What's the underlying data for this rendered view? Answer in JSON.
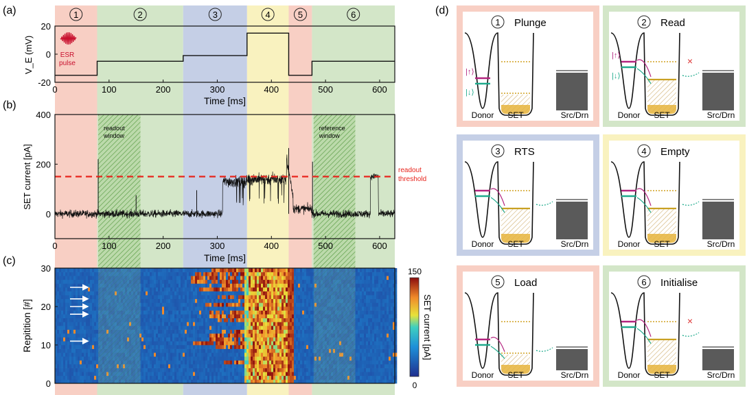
{
  "panel_labels": [
    "(a)",
    "(b)",
    "(c)",
    "(d)"
  ],
  "phases": [
    {
      "num": "1",
      "name": "Plunge",
      "start": 0,
      "end": 78,
      "color": "#f8cfc4"
    },
    {
      "num": "2",
      "name": "Read",
      "start": 78,
      "end": 237,
      "color": "#d3e6c8"
    },
    {
      "num": "3",
      "name": "RTS",
      "start": 237,
      "end": 355,
      "color": "#c5cfe6"
    },
    {
      "num": "4",
      "name": "Empty",
      "start": 355,
      "end": 432,
      "color": "#f9f2bf"
    },
    {
      "num": "5",
      "name": "Load",
      "start": 432,
      "end": 475,
      "color": "#f8cfc4"
    },
    {
      "num": "6",
      "name": "Initialise",
      "start": 475,
      "end": 628,
      "color": "#d3e6c8"
    }
  ],
  "chart_data": [
    {
      "type": "line",
      "panel": "(a)",
      "ylabel": "V_E (mV)",
      "xlabel": "Time [ms]",
      "xlim": [
        0,
        628
      ],
      "ylim": [
        -20,
        20
      ],
      "xticks": [
        0,
        100,
        200,
        300,
        400,
        500,
        600
      ],
      "yticks": [
        -20,
        0,
        20
      ],
      "x": [
        0,
        78,
        78,
        237,
        237,
        355,
        355,
        432,
        432,
        475,
        475,
        628
      ],
      "y": [
        -15,
        -15,
        -5,
        -5,
        -1,
        -1,
        15,
        15,
        -15,
        -15,
        -5,
        -5
      ],
      "annotation": {
        "text1": "ESR",
        "text2": "pulse",
        "color": "#c8102e"
      }
    },
    {
      "type": "line",
      "panel": "(b)",
      "ylabel": "SET current [pA]",
      "xlabel": "Time [ms]",
      "xlim": [
        0,
        628
      ],
      "ylim": [
        -100,
        400
      ],
      "xticks": [
        0,
        100,
        200,
        300,
        400,
        500,
        600
      ],
      "yticks": [
        0,
        200,
        400
      ],
      "threshold": {
        "value": 150,
        "label1": "readout",
        "label2": "threshold",
        "color": "#e8231b"
      },
      "windows": [
        {
          "label1": "readout",
          "label2": "window",
          "start": 80,
          "end": 158
        },
        {
          "label1": "reference",
          "label2": "window",
          "start": 478,
          "end": 555
        }
      ],
      "segments": [
        {
          "x0": 0,
          "x1": 78,
          "level": 0,
          "noise": 18
        },
        {
          "x0": 78,
          "x1": 310,
          "level": 0,
          "noise": 18
        },
        {
          "x0": 310,
          "x1": 355,
          "level": 130,
          "noise": 28
        },
        {
          "x0": 355,
          "x1": 428,
          "level": 140,
          "noise": 28
        },
        {
          "x0": 428,
          "x1": 475,
          "level": 20,
          "noise": 22
        },
        {
          "x0": 475,
          "x1": 583,
          "level": 0,
          "noise": 18
        },
        {
          "x0": 583,
          "x1": 598,
          "level": 150,
          "noise": 15
        },
        {
          "x0": 598,
          "x1": 628,
          "level": 0,
          "noise": 18
        }
      ],
      "spikes": [
        {
          "x": 80,
          "y": 220
        },
        {
          "x": 150,
          "y": 75
        },
        {
          "x": 262,
          "y": 95
        },
        {
          "x": 432,
          "y": 265
        },
        {
          "x": 476,
          "y": 210
        }
      ]
    },
    {
      "type": "heatmap",
      "panel": "(c)",
      "ylabel": "Repitition [#]",
      "xlim": [
        0,
        628
      ],
      "ylim": [
        0,
        30
      ],
      "yticks": [
        0,
        10,
        20,
        30
      ],
      "colorbar": {
        "label": "SET current [pA]",
        "min": 0,
        "max": 150,
        "ticks": [
          0,
          150
        ]
      },
      "arrows_at_repetitions": [
        11,
        18,
        20,
        22,
        25
      ]
    }
  ],
  "diagram_panels": [
    {
      "num": "1",
      "title": "Plunge",
      "bg": "#f8cfc4"
    },
    {
      "num": "2",
      "title": "Read",
      "bg": "#d3e6c8"
    },
    {
      "num": "3",
      "title": "RTS",
      "bg": "#c5cfe6"
    },
    {
      "num": "4",
      "title": "Empty",
      "bg": "#f9f2bf"
    },
    {
      "num": "5",
      "title": "Load",
      "bg": "#f8cfc4"
    },
    {
      "num": "6",
      "title": "Initialise",
      "bg": "#d3e6c8"
    }
  ],
  "diagram_labels": {
    "donor": "Donor",
    "set": "SET",
    "srcdrn": "Src/Drn",
    "up": "|↑⟩",
    "down": "|↓⟩"
  },
  "colors": {
    "spin_up": "#b3247f",
    "spin_down": "#1eaa8c",
    "set_fill": "#e6b43c",
    "lead": "#5a5a5a",
    "trace": "#111111"
  }
}
